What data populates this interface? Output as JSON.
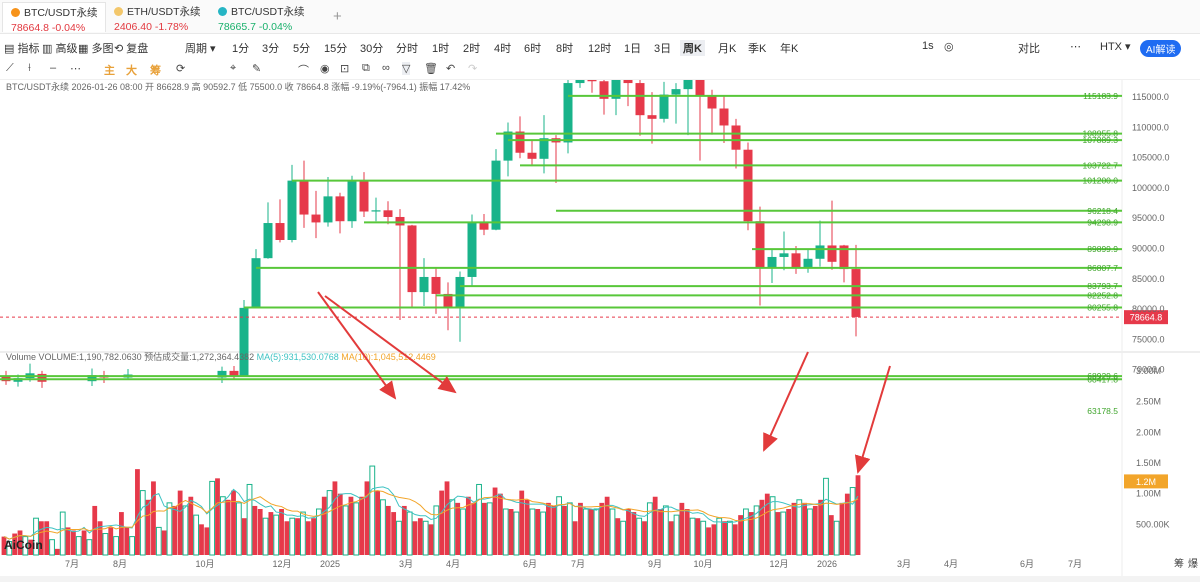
{
  "tabs": [
    {
      "name": "BTC/USDT永续",
      "price": "78664.8",
      "change": "-0.04%",
      "price_color": "#e2383f",
      "icon_color": "#f7931a"
    },
    {
      "name": "ETH/USDT永续",
      "price": "2406.40",
      "change": "-1.78%",
      "price_color": "#e2383f",
      "icon_color": "#f3c76b"
    },
    {
      "name": "BTC/USDT永续",
      "price": "78665.7",
      "change": "-0.04%",
      "price_color": "#18b06b",
      "icon_color": "#26b5c4"
    }
  ],
  "add_tab": "+",
  "toolbar": {
    "indicator": "指标",
    "advanced": "高级",
    "multi": "多图",
    "replay": "复盘",
    "period": "周期",
    "intervals": [
      "1分",
      "3分",
      "5分",
      "15分",
      "30分",
      "分时",
      "1时",
      "2时",
      "4时",
      "6时",
      "8时",
      "12时",
      "1日",
      "3日",
      "周K",
      "月K",
      "季K",
      "年K"
    ],
    "selected_interval": "周K",
    "right": {
      "speed": "1s",
      "camera": "◎",
      "compare": "对比",
      "more": "⋯",
      "exchange": "HTX",
      "ai": "AI解读"
    }
  },
  "drawing_tools": {
    "main": "主",
    "big": "大",
    "chip": "筹"
  },
  "chart_data": {
    "type": "candlestick",
    "symbol_line": "BTC/USDT永续",
    "date": "2026-01-26 08:00",
    "open_label": "开",
    "open": "86628.9",
    "high_label": "高",
    "high": "90592.7",
    "low_label": "低",
    "low": "75500.0",
    "close_label": "收",
    "close": "78664.8",
    "chg_label": "涨幅",
    "chg": "-9.19%(-7964.1)",
    "amp_label": "振幅",
    "amp": "17.42%",
    "price_axis": [
      "115000.0",
      "110000.0",
      "105000.0",
      "100000.0",
      "95000.0",
      "90000.0",
      "85000.0",
      "80000.0",
      "75000.0",
      "70000.0"
    ],
    "level_lines": [
      "115183.9",
      "108955.8",
      "107889.3",
      "103722.7",
      "101200.0",
      "96218.4",
      "94298.9",
      "89899.9",
      "86807.7",
      "83793.7",
      "82252.8",
      "80255.8",
      "78664.8",
      "68929.6",
      "68417.8",
      "63178.5"
    ],
    "current_price": "78664.8",
    "x_labels": [
      "7月",
      "8月",
      "10月",
      "12月",
      "2025",
      "3月",
      "4月",
      "6月",
      "7月",
      "9月",
      "10月",
      "12月",
      "2026",
      "3月",
      "4月",
      "6月",
      "7月"
    ],
    "volume": {
      "title": "Volume",
      "total_label": "VOLUME:",
      "total": "1,190,782.0630",
      "est_label": "预估成交量:",
      "est": "1,272,364.4382",
      "ma5_label": "MA(5):",
      "ma5": "931,530.0768",
      "ma10_label": "MA(10):",
      "ma10": "1,045,512.4469",
      "axis": [
        "3.00M",
        "2.50M",
        "2.00M",
        "1.50M",
        "1.00M",
        "500.00K"
      ],
      "current_tag": "1.2M"
    },
    "colors": {
      "up": "#19b38a",
      "down": "#e6394a",
      "level": "#58c73a",
      "ma5": "#3ec3c3",
      "ma10": "#f2a52a",
      "arrow": "#e23b3b"
    }
  },
  "brand": "AiCoin",
  "bottom_right": [
    "筹",
    "爆"
  ]
}
